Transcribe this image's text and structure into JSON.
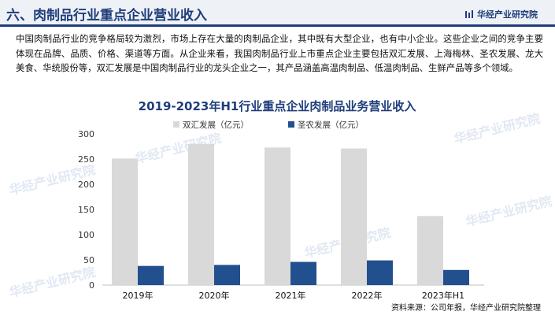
{
  "header": {
    "section_title": "六、肉制品行业重点企业营业收入",
    "brand_name": "华经产业研究院"
  },
  "paragraph": "中国肉制品行业的竞争格局较为激烈，市场上存在大量的肉制品企业，其中既有大型企业，也有中小企业。这些企业之间的竞争主要体现在品牌、品质、价格、渠道等方面。从企业来看，我国肉制品行业上市重点企业主要包括双汇发展、上海梅林、圣农发展、龙大美食、华统股份等，双汇发展是中国肉制品行业的龙头企业之一，其产品涵盖高温肉制品、低温肉制品、生鲜产品等多个领域。",
  "watermark_text": "华经产业研究院",
  "colors": {
    "series_1": "#d9d9d9",
    "series_2": "#22508f",
    "title": "#1f3d7a"
  },
  "chart_data": {
    "type": "bar",
    "title": "2019-2023年H1行业重点企业肉制品业务营业收入",
    "categories": [
      "2019年",
      "2020年",
      "2021年",
      "2022年",
      "2023年H1"
    ],
    "series": [
      {
        "name": "双汇发展（亿元）",
        "values": [
          251,
          280,
          273,
          271,
          137
        ]
      },
      {
        "name": "圣农发展（亿元）",
        "values": [
          38,
          40,
          46,
          49,
          30
        ]
      }
    ],
    "ylim": [
      0,
      300
    ],
    "yticks": [
      0,
      50,
      100,
      150,
      200,
      250,
      300
    ],
    "grid": false,
    "legend_position": "top-center"
  },
  "source": "资料来源：公司年报，华经产业研究院整理"
}
